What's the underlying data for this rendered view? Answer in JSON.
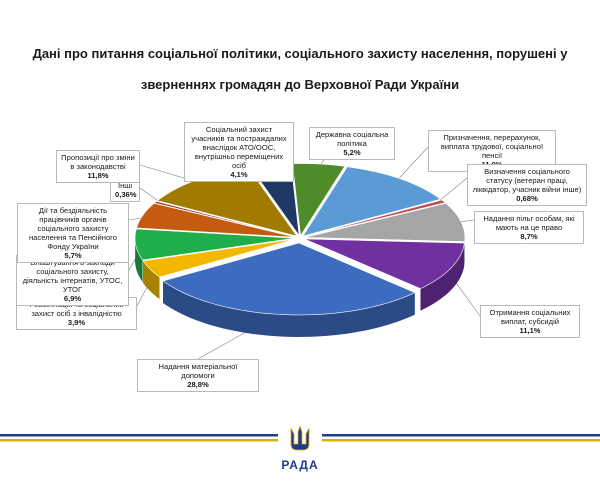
{
  "title": "Дані про питання соціальної політики, соціального захисту населення, порушені у зверненнях громадян до Верховної Ради України",
  "chart_data": {
    "type": "pie",
    "title": "Дані про питання соціальної політики, соціального захисту населення, порушені у зверненнях громадян до Верховної Ради України",
    "slices": [
      {
        "label": "Державна соціальна політика",
        "value": 5.2,
        "display": "5,2%",
        "color": "#4e8c2a"
      },
      {
        "label": "Призначення, перерахунок, виплата трудової, соціальної пенсії",
        "value": 11.9,
        "display": "11,9%",
        "color": "#5b9bd5"
      },
      {
        "label": "Визначення соціального статусу (ветеран праці, ліквідатор, учасник війни інше)",
        "value": 0.68,
        "display": "0,68%",
        "color": "#c0504d"
      },
      {
        "label": "Надання пільг особам, які мають на це право",
        "value": 8.7,
        "display": "8,7%",
        "color": "#a5a5a5"
      },
      {
        "label": "Отримання соціальних виплат, субсидій",
        "value": 11.1,
        "display": "11,1%",
        "color": "#7030a0"
      },
      {
        "label": "Надання матеріальної допомоги",
        "value": 28.8,
        "display": "28,8%",
        "color": "#3d6bbf"
      },
      {
        "label": "Реабілітація та соціальний захист осіб з інвалідністю",
        "value": 3.9,
        "display": "3,9%",
        "color": "#f2b800"
      },
      {
        "label": "Влаштування в заклади соціального захисту, діяльність інтернатів, УТОС, УТОГ",
        "value": 6.9,
        "display": "6,9%",
        "color": "#1fae4a"
      },
      {
        "label": "Дії та бездіяльність працівників органів соціального захисту населення та Пенсійного Фонду України",
        "value": 5.7,
        "display": "5,7%",
        "color": "#c55a11"
      },
      {
        "label": "Інші",
        "value": 0.36,
        "display": "0,36%",
        "color": "#9e1b1b"
      },
      {
        "label": "Пропозиції про зміни в законодавстві",
        "value": 11.8,
        "display": "11,8%",
        "color": "#a07b00"
      },
      {
        "label": "Соціальний захист учасників та постраждалих внаслідок АТО/ООС, внутрішньо переміщених осіб",
        "value": 4.1,
        "display": "4,1%",
        "color": "#1f3864"
      }
    ]
  },
  "footer": {
    "brand": "РАДА",
    "line_blue": "#1f3a8a",
    "line_gold": "#e0b000"
  }
}
